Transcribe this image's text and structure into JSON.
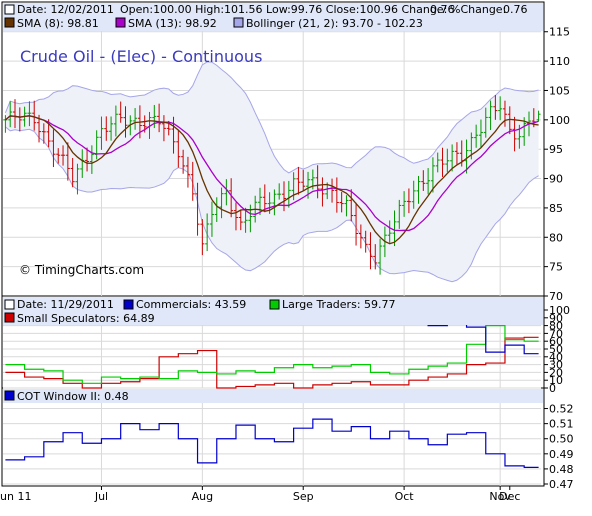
{
  "colors": {
    "background": "#ffffff",
    "panel_border": "#000000",
    "legend_band": "#dfe7f8",
    "grid": "#d9d9d9",
    "bollinger_fill": "#eef1f7",
    "bollinger_line": "#a6a6ea",
    "price_up": "#009900",
    "price_down": "#cc0000",
    "sma8": "#663300",
    "sma13": "#aa00cc",
    "commercials": "#0000cc",
    "large_traders": "#00cc00",
    "small_speculators": "#cc0000",
    "cot_window": "#0000cc",
    "title_text": "#3b3bbf",
    "change_text": "#009900"
  },
  "legend": {
    "price_date": "Date: 12/02/2011",
    "price_ohlc": "Open:100.00  High:101.56  Low:99.76  Close:100.96  Change:",
    "price_change": "0.76",
    "price_pct_label": "%Change:",
    "price_pct_value": "0.76",
    "sma8": "SMA (8): 98.81",
    "sma13": "SMA (13): 98.92",
    "bollinger": "Bollinger (21, 2): 93.70 - 102.23",
    "cot_date": "Date: 11/29/2011",
    "commercials": "Commercials: 43.59",
    "large_traders": "Large Traders: 59.77",
    "small_speculators": "Small Speculators: 64.89",
    "cot_window": "COT Window II: 0.48"
  },
  "title": "Crude Oil - (Elec) - Continuous",
  "copyright": "© TimingCharts.com",
  "x_axis_labels": [
    "un 11",
    "Jul",
    "Aug",
    "Sep",
    "Oct",
    "Nov",
    "Dec"
  ],
  "chart_data": [
    {
      "type": "bar",
      "subtype": "ohlc",
      "title": "Crude Oil - (Elec) - Continuous",
      "ylim": [
        70,
        117
      ],
      "yticks": [
        70,
        75,
        80,
        85,
        90,
        95,
        100,
        105,
        110,
        115
      ],
      "grid": true,
      "anchor_points": [
        [
          0,
          100
        ],
        [
          6,
          100.5
        ],
        [
          10,
          95
        ],
        [
          14,
          90
        ],
        [
          17,
          94
        ],
        [
          20,
          98
        ],
        [
          24,
          100
        ],
        [
          28,
          100
        ],
        [
          32,
          99.5
        ],
        [
          36,
          95
        ],
        [
          39,
          88
        ],
        [
          41,
          78
        ],
        [
          43,
          84
        ],
        [
          46,
          88
        ],
        [
          49,
          82
        ],
        [
          52,
          85
        ],
        [
          56,
          87
        ],
        [
          60,
          89
        ],
        [
          64,
          89
        ],
        [
          68,
          88
        ],
        [
          71,
          85
        ],
        [
          73,
          81
        ],
        [
          75,
          78
        ],
        [
          77,
          77
        ],
        [
          79,
          80
        ],
        [
          82,
          84
        ],
        [
          85,
          88
        ],
        [
          89,
          92
        ],
        [
          92,
          93
        ],
        [
          95,
          94
        ],
        [
          98,
          98
        ],
        [
          101,
          101
        ],
        [
          103,
          102
        ],
        [
          105,
          98
        ],
        [
          107,
          98
        ],
        [
          109,
          100
        ],
        [
          111,
          100.9
        ]
      ],
      "final_bar": {
        "open": 100.0,
        "high": 101.56,
        "low": 99.76,
        "close": 100.96
      },
      "series": [
        {
          "name": "SMA (8)",
          "last": 98.81
        },
        {
          "name": "SMA (13)",
          "last": 98.92
        },
        {
          "name": "Bollinger (21, 2)",
          "lower": 93.7,
          "upper": 102.23
        }
      ]
    },
    {
      "type": "line",
      "title": "COT",
      "ylim": [
        0,
        100
      ],
      "yticks": [
        0,
        10,
        20,
        30,
        40,
        50,
        60,
        70,
        80,
        90,
        100
      ],
      "grid": true,
      "series": [
        {
          "name": "Commercials",
          "last": 43.59,
          "steps": [
            [
              0,
              88
            ],
            [
              4,
              90
            ],
            [
              8,
              94
            ],
            [
              11,
              98
            ],
            [
              14,
              95
            ],
            [
              18,
              95
            ],
            [
              22,
              96
            ],
            [
              26,
              98
            ],
            [
              30,
              94
            ],
            [
              34,
              98
            ],
            [
              38,
              95
            ],
            [
              42,
              95
            ],
            [
              45,
              97
            ],
            [
              48,
              100
            ],
            [
              52,
              96
            ],
            [
              56,
              92
            ],
            [
              60,
              90
            ],
            [
              64,
              94
            ],
            [
              68,
              90
            ],
            [
              72,
              90
            ],
            [
              76,
              86
            ],
            [
              80,
              90
            ],
            [
              84,
              92
            ],
            [
              88,
              80
            ],
            [
              92,
              84
            ],
            [
              96,
              78
            ],
            [
              100,
              46
            ],
            [
              104,
              55
            ],
            [
              108,
              44
            ],
            [
              111,
              44
            ]
          ]
        },
        {
          "name": "Large Traders",
          "last": 59.77,
          "steps": [
            [
              0,
              30
            ],
            [
              4,
              24
            ],
            [
              8,
              22
            ],
            [
              12,
              10
            ],
            [
              16,
              6
            ],
            [
              20,
              14
            ],
            [
              24,
              12
            ],
            [
              28,
              14
            ],
            [
              32,
              12
            ],
            [
              36,
              22
            ],
            [
              40,
              20
            ],
            [
              44,
              18
            ],
            [
              48,
              22
            ],
            [
              52,
              20
            ],
            [
              56,
              26
            ],
            [
              60,
              30
            ],
            [
              64,
              26
            ],
            [
              68,
              28
            ],
            [
              72,
              30
            ],
            [
              76,
              20
            ],
            [
              80,
              18
            ],
            [
              84,
              24
            ],
            [
              88,
              28
            ],
            [
              92,
              32
            ],
            [
              96,
              56
            ],
            [
              100,
              80
            ],
            [
              104,
              62
            ],
            [
              108,
              60
            ],
            [
              111,
              60
            ]
          ]
        },
        {
          "name": "Small Speculators",
          "last": 64.89,
          "steps": [
            [
              0,
              20
            ],
            [
              4,
              14
            ],
            [
              8,
              12
            ],
            [
              12,
              6
            ],
            [
              16,
              0
            ],
            [
              20,
              6
            ],
            [
              24,
              8
            ],
            [
              28,
              12
            ],
            [
              32,
              40
            ],
            [
              36,
              44
            ],
            [
              40,
              48
            ],
            [
              44,
              0
            ],
            [
              48,
              2
            ],
            [
              52,
              4
            ],
            [
              56,
              6
            ],
            [
              60,
              0
            ],
            [
              64,
              4
            ],
            [
              68,
              6
            ],
            [
              72,
              8
            ],
            [
              76,
              4
            ],
            [
              80,
              4
            ],
            [
              84,
              10
            ],
            [
              88,
              14
            ],
            [
              92,
              18
            ],
            [
              96,
              30
            ],
            [
              100,
              32
            ],
            [
              104,
              64
            ],
            [
              108,
              65
            ],
            [
              111,
              65
            ]
          ]
        }
      ]
    },
    {
      "type": "line",
      "title": "COT Window II",
      "ylim": [
        0.47,
        0.525
      ],
      "yticks": [
        0.47,
        0.48,
        0.49,
        0.5,
        0.51,
        0.52
      ],
      "grid": true,
      "series": [
        {
          "name": "COT Window II",
          "last": 0.48,
          "steps": [
            [
              0,
              0.486
            ],
            [
              4,
              0.488
            ],
            [
              8,
              0.498
            ],
            [
              12,
              0.504
            ],
            [
              16,
              0.497
            ],
            [
              20,
              0.5
            ],
            [
              24,
              0.51
            ],
            [
              28,
              0.506
            ],
            [
              32,
              0.51
            ],
            [
              36,
              0.5
            ],
            [
              40,
              0.484
            ],
            [
              44,
              0.5
            ],
            [
              48,
              0.509
            ],
            [
              52,
              0.5
            ],
            [
              56,
              0.498
            ],
            [
              60,
              0.507
            ],
            [
              64,
              0.513
            ],
            [
              68,
              0.505
            ],
            [
              72,
              0.508
            ],
            [
              76,
              0.5
            ],
            [
              80,
              0.505
            ],
            [
              84,
              0.5
            ],
            [
              88,
              0.496
            ],
            [
              92,
              0.503
            ],
            [
              96,
              0.504
            ],
            [
              100,
              0.49
            ],
            [
              104,
              0.482
            ],
            [
              108,
              0.481
            ],
            [
              111,
              0.481
            ]
          ]
        }
      ]
    }
  ]
}
